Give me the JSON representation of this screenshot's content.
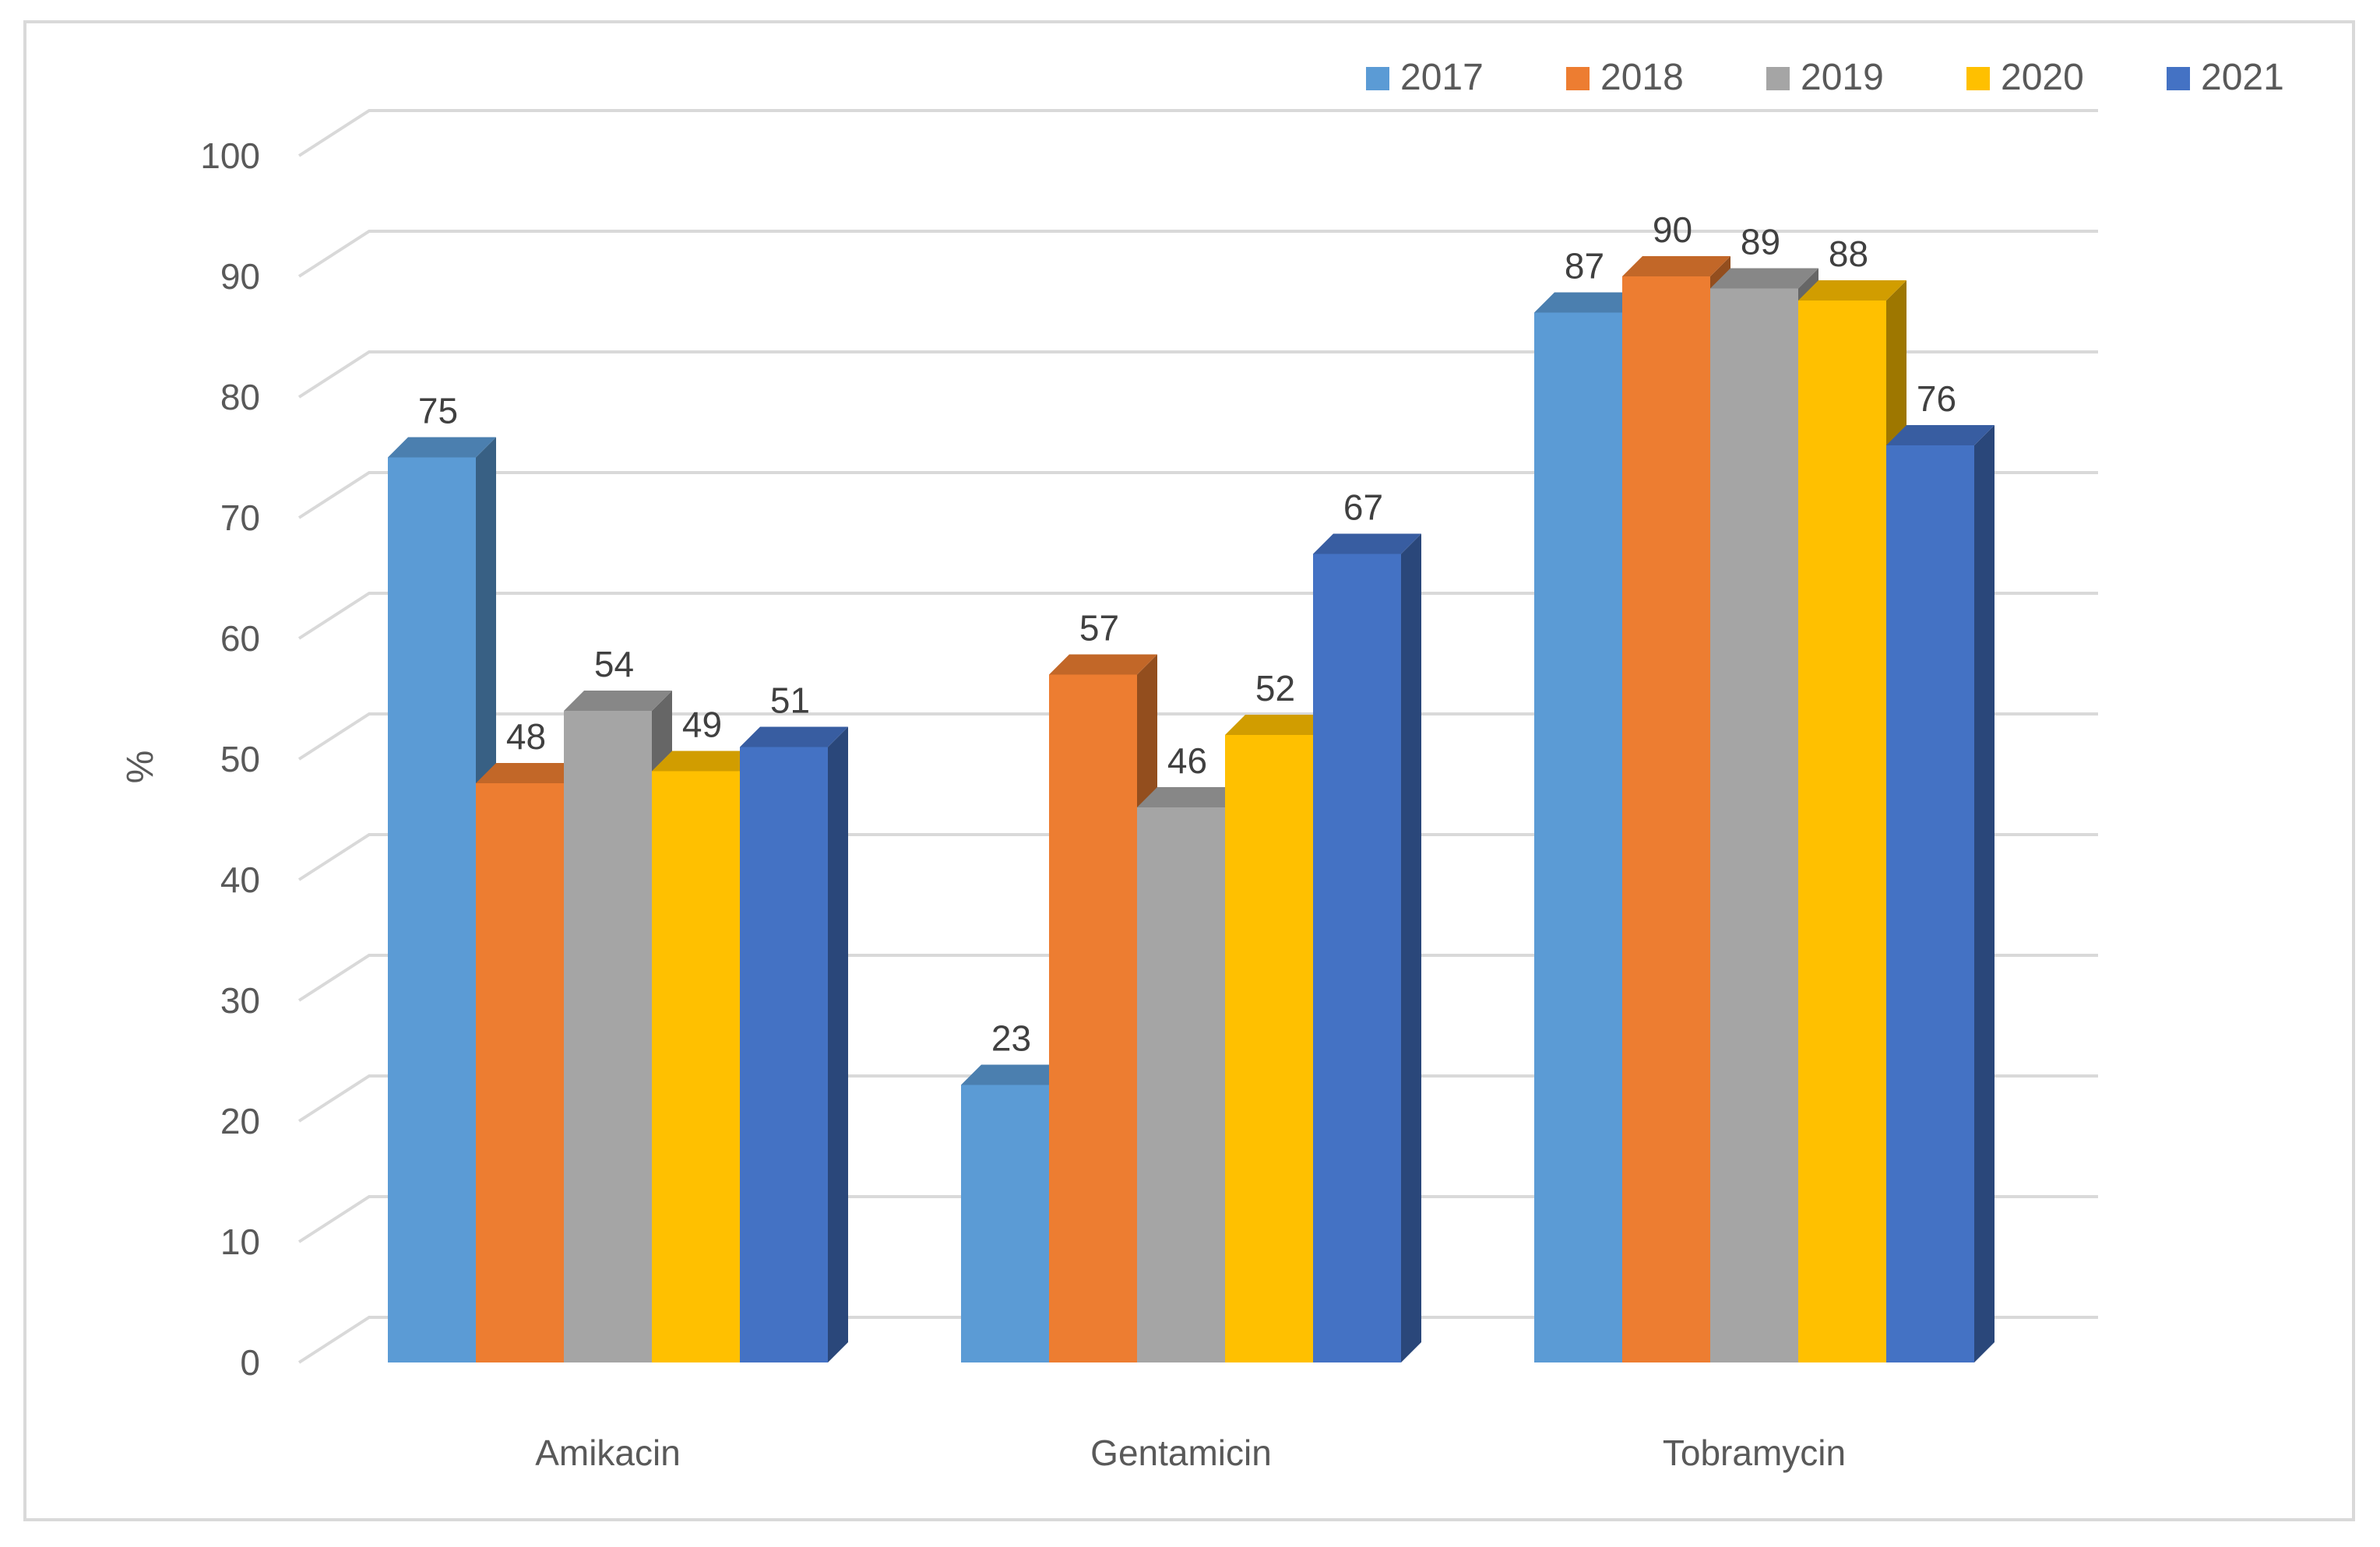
{
  "chart_data": {
    "type": "bar",
    "style": "3d-clustered-column",
    "title": "",
    "xlabel": "",
    "ylabel": "%",
    "ylim": [
      0,
      100
    ],
    "yticks": [
      0,
      10,
      20,
      30,
      40,
      50,
      60,
      70,
      80,
      90,
      100
    ],
    "grid": true,
    "legend_position": "top-right",
    "categories": [
      "Amikacin",
      "Gentamicin",
      "Tobramycin"
    ],
    "series": [
      {
        "name": "2017",
        "color": "#5B9BD5",
        "values": [
          75,
          23,
          87
        ]
      },
      {
        "name": "2018",
        "color": "#ED7D31",
        "values": [
          48,
          57,
          90
        ]
      },
      {
        "name": "2019",
        "color": "#A5A5A5",
        "values": [
          54,
          46,
          89
        ]
      },
      {
        "name": "2020",
        "color": "#FFC000",
        "values": [
          49,
          52,
          88
        ]
      },
      {
        "name": "2021",
        "color": "#4472C4",
        "values": [
          51,
          67,
          76
        ]
      }
    ]
  }
}
